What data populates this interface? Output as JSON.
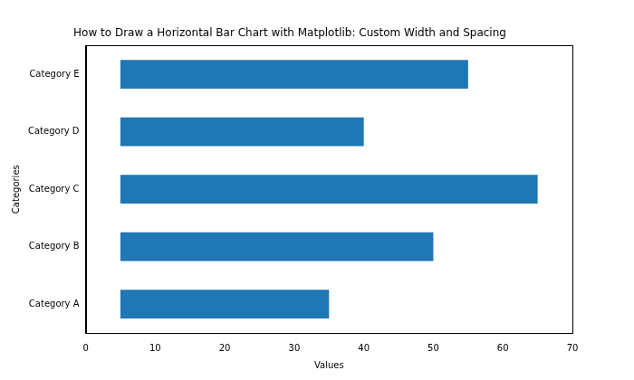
{
  "chart_data": {
    "type": "bar",
    "orientation": "horizontal",
    "title": "How to Draw a Horizontal Bar Chart with Matplotlib: Custom Width and Spacing",
    "x_label": "Values",
    "y_label": "Categories",
    "categories": [
      "Category A",
      "Category B",
      "Category C",
      "Category D",
      "Category E"
    ],
    "values": [
      35,
      50,
      65,
      40,
      55
    ],
    "base": 5,
    "color": "#1f77b4",
    "xlim": [
      0,
      70
    ],
    "xticks": [
      0,
      10,
      20,
      30,
      40,
      50,
      60,
      70
    ],
    "grid": false
  }
}
